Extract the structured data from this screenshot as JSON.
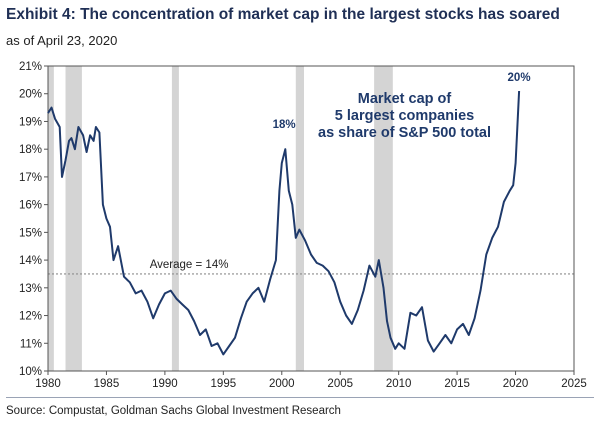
{
  "title": "Exhibit 4: The concentration of market cap in the largest stocks has soared",
  "subtitle": "as of April 23, 2020",
  "source": "Source: Compustat, Goldman Sachs Global Investment Research",
  "colors": {
    "line": "#1f3a6b",
    "recession": "#d4d4d4",
    "average": "#8c8c8c"
  },
  "chart_data": {
    "type": "line",
    "title": "Exhibit 4: The concentration of market cap in the largest stocks has soared",
    "xlabel": "",
    "ylabel": "",
    "xlim": [
      1980,
      2025
    ],
    "ylim": [
      10,
      21
    ],
    "x_ticks": [
      1980,
      1985,
      1990,
      1995,
      2000,
      2005,
      2010,
      2015,
      2020,
      2025
    ],
    "y_ticks": [
      "10%",
      "11%",
      "12%",
      "13%",
      "14%",
      "15%",
      "16%",
      "17%",
      "18%",
      "19%",
      "20%",
      "21%"
    ],
    "grid": false,
    "series": [
      {
        "name": "Market cap of 5 largest companies as share of S&P 500 total",
        "x": [
          1980.0,
          1980.3,
          1980.6,
          1981.0,
          1981.2,
          1981.5,
          1981.8,
          1982.0,
          1982.3,
          1982.6,
          1983.0,
          1983.3,
          1983.6,
          1983.9,
          1984.1,
          1984.4,
          1984.7,
          1985.0,
          1985.3,
          1985.6,
          1986.0,
          1986.5,
          1987.0,
          1987.5,
          1988.0,
          1988.5,
          1989.0,
          1989.5,
          1990.0,
          1990.5,
          1991.0,
          1991.5,
          1992.0,
          1992.5,
          1993.0,
          1993.5,
          1994.0,
          1994.5,
          1995.0,
          1995.5,
          1996.0,
          1996.5,
          1997.0,
          1997.5,
          1998.0,
          1998.5,
          1999.0,
          1999.5,
          1999.8,
          2000.0,
          2000.3,
          2000.6,
          2000.9,
          2001.2,
          2001.5,
          2002.0,
          2002.5,
          2003.0,
          2003.5,
          2004.0,
          2004.5,
          2005.0,
          2005.5,
          2006.0,
          2006.5,
          2007.0,
          2007.5,
          2008.0,
          2008.3,
          2008.7,
          2009.0,
          2009.3,
          2009.7,
          2010.0,
          2010.5,
          2011.0,
          2011.5,
          2012.0,
          2012.5,
          2013.0,
          2013.5,
          2014.0,
          2014.5,
          2015.0,
          2015.5,
          2016.0,
          2016.5,
          2017.0,
          2017.5,
          2018.0,
          2018.5,
          2019.0,
          2019.5,
          2019.8,
          2020.0,
          2020.3
        ],
        "values": [
          19.3,
          19.5,
          19.1,
          18.8,
          17.0,
          17.6,
          18.3,
          18.4,
          18.0,
          18.8,
          18.5,
          17.9,
          18.5,
          18.3,
          18.8,
          18.6,
          16.0,
          15.5,
          15.2,
          14.0,
          14.5,
          13.4,
          13.2,
          12.8,
          12.9,
          12.5,
          11.9,
          12.4,
          12.8,
          12.9,
          12.6,
          12.4,
          12.2,
          11.8,
          11.3,
          11.5,
          10.9,
          11.0,
          10.6,
          10.9,
          11.2,
          11.9,
          12.5,
          12.8,
          13.0,
          12.5,
          13.3,
          14.0,
          16.5,
          17.5,
          18.0,
          16.5,
          16.0,
          14.8,
          15.1,
          14.7,
          14.2,
          13.9,
          13.8,
          13.6,
          13.2,
          12.5,
          12.0,
          11.7,
          12.2,
          12.9,
          13.8,
          13.4,
          14.0,
          13.0,
          11.8,
          11.2,
          10.8,
          11.0,
          10.8,
          12.1,
          12.0,
          12.3,
          11.1,
          10.7,
          11.0,
          11.3,
          11.0,
          11.5,
          11.7,
          11.3,
          11.9,
          12.9,
          14.2,
          14.8,
          15.2,
          16.1,
          16.5,
          16.7,
          17.5,
          20.1
        ]
      }
    ],
    "average": {
      "value": 13.5,
      "label": "Average = 14%"
    },
    "recessions": [
      [
        1980.0,
        1980.5
      ],
      [
        1981.5,
        1982.9
      ],
      [
        1990.6,
        1991.2
      ],
      [
        2001.2,
        2001.9
      ],
      [
        2007.9,
        2009.5
      ]
    ],
    "annotations": [
      {
        "text": "18%",
        "x": 2000.2,
        "y": 18.4
      },
      {
        "text": "20%",
        "x": 2020.3,
        "y": 20.1
      }
    ],
    "legend_text": [
      "Market cap of",
      "5 largest companies",
      "as share of S&P 500 total"
    ],
    "legend_position": "top-right"
  }
}
